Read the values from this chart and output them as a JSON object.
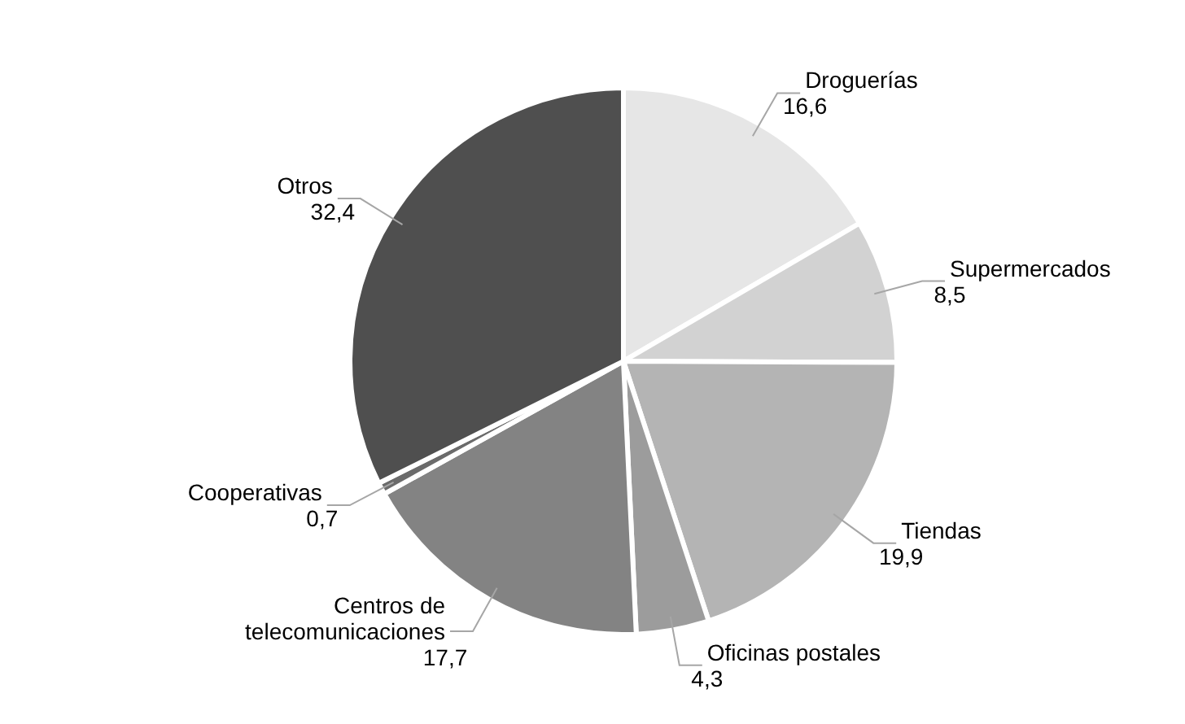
{
  "chart_data": {
    "type": "pie",
    "categories": [
      "Droguerías",
      "Supermercados",
      "Tiendas",
      "Oficinas postales",
      "Centros de telecomunicaciones",
      "Cooperativas",
      "Otros"
    ],
    "values": [
      16.6,
      8.5,
      19.9,
      4.3,
      17.7,
      0.7,
      32.4
    ],
    "value_labels": [
      "16,6",
      "8,5",
      "19,9",
      "4,3",
      "17,7",
      "0,7",
      "32,4"
    ],
    "colors": [
      "#e6e6e6",
      "#d2d2d2",
      "#b4b4b4",
      "#9c9c9c",
      "#838383",
      "#6b6b6b",
      "#4f4f4f"
    ]
  }
}
